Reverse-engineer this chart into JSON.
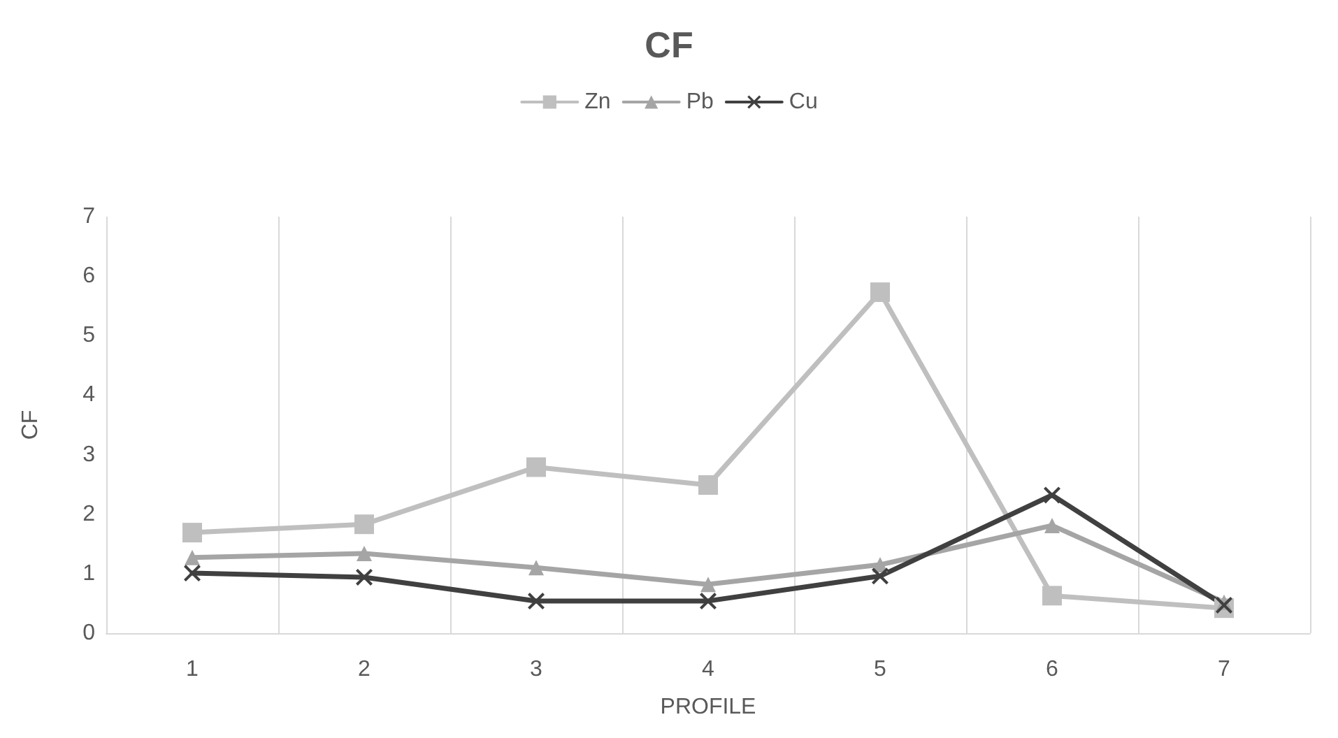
{
  "chart_data": {
    "type": "line",
    "title": "CF",
    "xlabel": "PROFILE",
    "ylabel": "CF",
    "categories": [
      "1",
      "2",
      "3",
      "4",
      "5",
      "6",
      "7"
    ],
    "series": [
      {
        "name": "Zn",
        "color": "#bfbfbf",
        "marker": "square",
        "values": [
          1.69,
          1.83,
          2.79,
          2.49,
          5.73,
          0.63,
          0.42
        ]
      },
      {
        "name": "Pb",
        "color": "#a5a5a5",
        "marker": "triangle",
        "values": [
          1.27,
          1.34,
          1.1,
          0.82,
          1.15,
          1.81,
          0.52
        ]
      },
      {
        "name": "Cu",
        "color": "#404040",
        "marker": "cross",
        "values": [
          1.01,
          0.94,
          0.54,
          0.54,
          0.96,
          2.32,
          0.47
        ]
      }
    ],
    "ylim": [
      0,
      7
    ],
    "yticks": [
      0,
      1,
      2,
      3,
      4,
      5,
      6,
      7
    ],
    "grid": "x",
    "legend": "top"
  }
}
